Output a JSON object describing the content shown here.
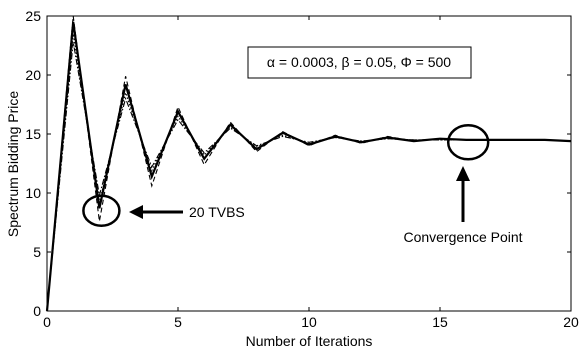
{
  "chart_data": {
    "type": "line",
    "xlabel": "Number of Iterations",
    "ylabel": "Spectrum Bidding Price",
    "xlim": [
      0,
      20
    ],
    "ylim": [
      0,
      25
    ],
    "xticks": [
      0,
      5,
      10,
      15,
      20
    ],
    "yticks": [
      0,
      5,
      10,
      15,
      20,
      25
    ],
    "grid": false,
    "series": [
      {
        "style": "solid",
        "x": [
          0,
          1,
          2,
          3,
          4,
          5,
          6,
          7,
          8,
          9,
          10,
          11,
          12,
          13,
          14,
          15,
          16,
          17,
          18,
          19,
          20
        ],
        "values": [
          0,
          24.5,
          8.7,
          19.2,
          11.4,
          16.9,
          12.9,
          15.8,
          13.7,
          15.1,
          14.1,
          14.8,
          14.3,
          14.7,
          14.4,
          14.6,
          14.5,
          14.5,
          14.5,
          14.5,
          14.4
        ]
      },
      {
        "style": "dashed",
        "x": [
          0,
          1,
          2,
          3,
          4,
          5,
          6,
          7,
          8,
          9,
          10,
          11,
          12,
          13,
          14,
          15,
          16,
          17,
          18,
          19,
          20
        ],
        "values": [
          0,
          25.0,
          7.6,
          19.9,
          10.6,
          17.3,
          12.4,
          16.0,
          13.5,
          15.2,
          14.0,
          14.9,
          14.2,
          14.8,
          14.4,
          14.6,
          14.5,
          14.5,
          14.5,
          14.5,
          14.4
        ]
      },
      {
        "style": "dotted",
        "x": [
          0,
          1,
          2,
          3,
          4,
          5,
          6,
          7,
          8,
          9,
          10,
          11,
          12,
          13,
          14,
          15,
          16,
          17,
          18,
          19,
          20
        ],
        "values": [
          0,
          23.5,
          9.2,
          18.5,
          11.9,
          16.5,
          13.2,
          15.6,
          13.9,
          14.9,
          14.2,
          14.7,
          14.4,
          14.6,
          14.5,
          14.5,
          14.5,
          14.5,
          14.5,
          14.5,
          14.4
        ]
      },
      {
        "style": "dashdot",
        "x": [
          0,
          1,
          2,
          3,
          4,
          5,
          6,
          7,
          8,
          9,
          10,
          11,
          12,
          13,
          14,
          15,
          16,
          17,
          18,
          19,
          20
        ],
        "values": [
          0,
          22.8,
          9.8,
          18.0,
          12.2,
          16.2,
          13.4,
          15.5,
          14.0,
          14.8,
          14.3,
          14.7,
          14.4,
          14.6,
          14.5,
          14.5,
          14.5,
          14.5,
          14.5,
          14.5,
          14.4
        ]
      }
    ],
    "annotations": {
      "params_text": "α = 0.0003, β = 0.05, Φ = 500",
      "tvbs_label": "20 TVBS",
      "tvbs_circle": {
        "x": 2,
        "y": 8.5
      },
      "convergence_label": "Convergence Point",
      "convergence_circle": {
        "x": 16,
        "y": 14.3
      }
    }
  }
}
